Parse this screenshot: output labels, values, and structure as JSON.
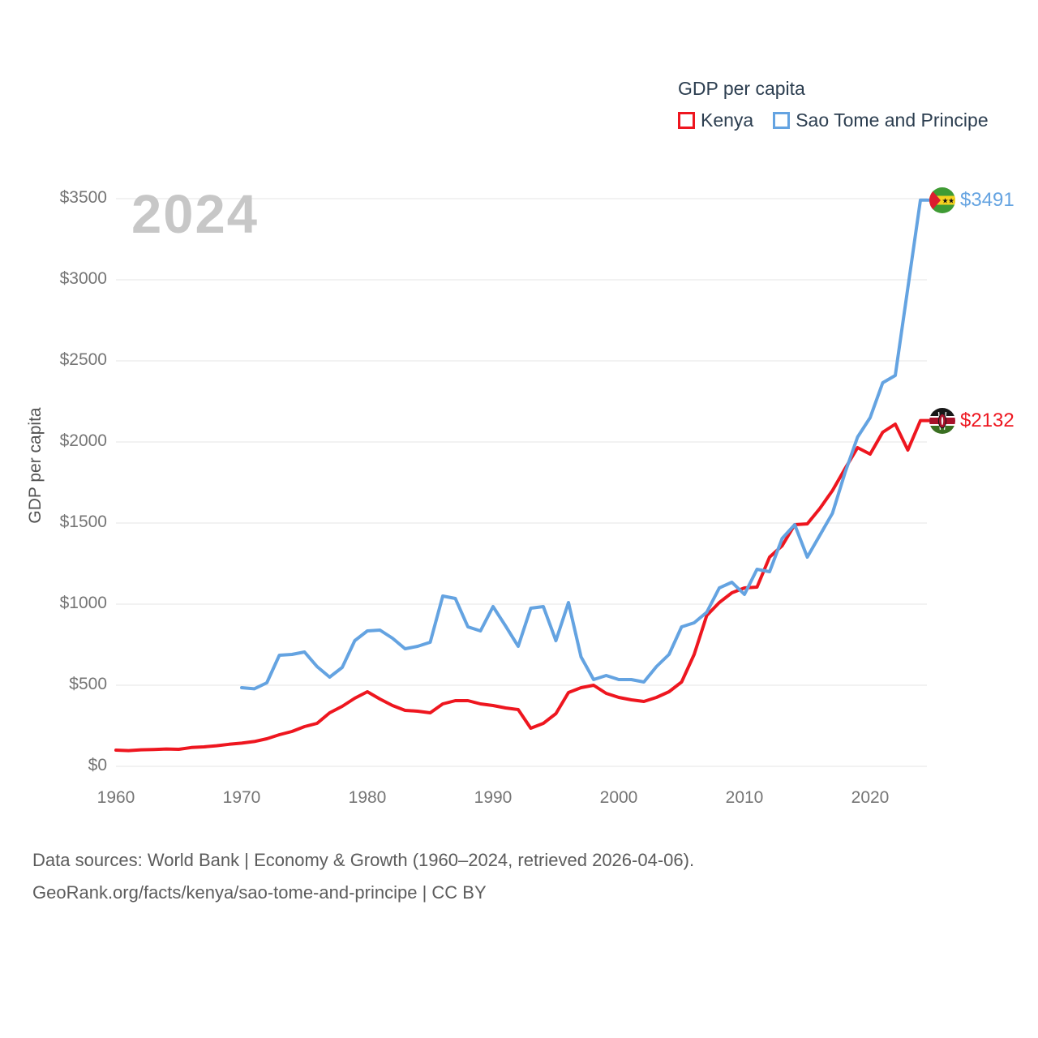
{
  "watermark": "2024",
  "legend": {
    "title": "GDP per capita",
    "series": [
      {
        "label": "Kenya",
        "color": "#ee161f"
      },
      {
        "label": "Sao Tome and Principe",
        "color": "#64a3e1"
      }
    ]
  },
  "end_labels": [
    {
      "series": "Sao Tome and Principe",
      "value": "$3491",
      "numeric": 3491,
      "color": "#64a3e1",
      "flag_icon": "sao-tome-flag-icon"
    },
    {
      "series": "Kenya",
      "value": "$2132",
      "numeric": 2132,
      "color": "#ee161f",
      "flag_icon": "kenya-flag-icon"
    }
  ],
  "footer": {
    "line1": "Data sources: World Bank | Economy & Growth (1960–2024, retrieved 2026-04-06).",
    "line2": "GeoRank.org/facts/kenya/sao-tome-and-principe | CC BY"
  },
  "colors": {
    "grid": "#e9e9e9",
    "tick_text": "#757575",
    "dark_text": "#2c3e50",
    "watermark": "#c7c7c7"
  },
  "chart_data": {
    "type": "line",
    "title": "GDP per capita",
    "xlabel": "",
    "ylabel": "GDP per capita",
    "ylim": [
      0,
      3500
    ],
    "xlim": [
      1960,
      2024
    ],
    "grid": "horizontal",
    "legend_position": "top-right",
    "x_ticks": [
      1960,
      1970,
      1980,
      1990,
      2000,
      2010,
      2020
    ],
    "y_ticks": [
      "$0",
      "$500",
      "$1000",
      "$1500",
      "$2000",
      "$2500",
      "$3000",
      "$3500"
    ],
    "series": [
      {
        "name": "Kenya",
        "color": "#ee161f",
        "x": [
          1960,
          1961,
          1962,
          1963,
          1964,
          1965,
          1966,
          1967,
          1968,
          1969,
          1970,
          1971,
          1972,
          1973,
          1974,
          1975,
          1976,
          1977,
          1978,
          1979,
          1980,
          1981,
          1982,
          1983,
          1984,
          1985,
          1986,
          1987,
          1988,
          1989,
          1990,
          1991,
          1992,
          1993,
          1994,
          1995,
          1996,
          1997,
          1998,
          1999,
          2000,
          2001,
          2002,
          2003,
          2004,
          2005,
          2006,
          2007,
          2008,
          2009,
          2010,
          2011,
          2012,
          2013,
          2014,
          2015,
          2016,
          2017,
          2018,
          2019,
          2020,
          2021,
          2022,
          2023,
          2024
        ],
        "values": [
          100,
          97,
          102,
          104,
          107,
          105,
          116,
          120,
          127,
          136,
          143,
          153,
          170,
          195,
          215,
          245,
          265,
          330,
          370,
          420,
          460,
          415,
          375,
          345,
          340,
          330,
          385,
          405,
          405,
          385,
          375,
          360,
          350,
          235,
          265,
          325,
          455,
          485,
          500,
          450,
          425,
          410,
          400,
          425,
          460,
          520,
          690,
          930,
          1010,
          1070,
          1100,
          1105,
          1290,
          1360,
          1490,
          1495,
          1590,
          1700,
          1835,
          1965,
          1925,
          2060,
          2110,
          1950,
          2132
        ]
      },
      {
        "name": "Sao Tome and Principe",
        "color": "#64a3e1",
        "x": [
          1970,
          1971,
          1972,
          1973,
          1974,
          1975,
          1976,
          1977,
          1978,
          1979,
          1980,
          1981,
          1982,
          1983,
          1984,
          1985,
          1986,
          1987,
          1988,
          1989,
          1990,
          1991,
          1992,
          1993,
          1994,
          1995,
          1996,
          1997,
          1998,
          1999,
          2000,
          2001,
          2002,
          2003,
          2004,
          2005,
          2006,
          2007,
          2008,
          2009,
          2010,
          2011,
          2012,
          2013,
          2014,
          2015,
          2016,
          2017,
          2018,
          2019,
          2020,
          2021,
          2022,
          2023,
          2024
        ],
        "values": [
          485,
          478,
          515,
          685,
          690,
          705,
          615,
          550,
          610,
          775,
          835,
          840,
          790,
          725,
          740,
          765,
          1050,
          1035,
          860,
          835,
          985,
          865,
          740,
          975,
          985,
          775,
          1010,
          675,
          535,
          560,
          535,
          535,
          520,
          615,
          690,
          860,
          885,
          950,
          1100,
          1135,
          1060,
          1215,
          1200,
          1405,
          1490,
          1290,
          1425,
          1560,
          1810,
          2030,
          2150,
          2365,
          2410,
          2950,
          3491
        ]
      }
    ]
  }
}
